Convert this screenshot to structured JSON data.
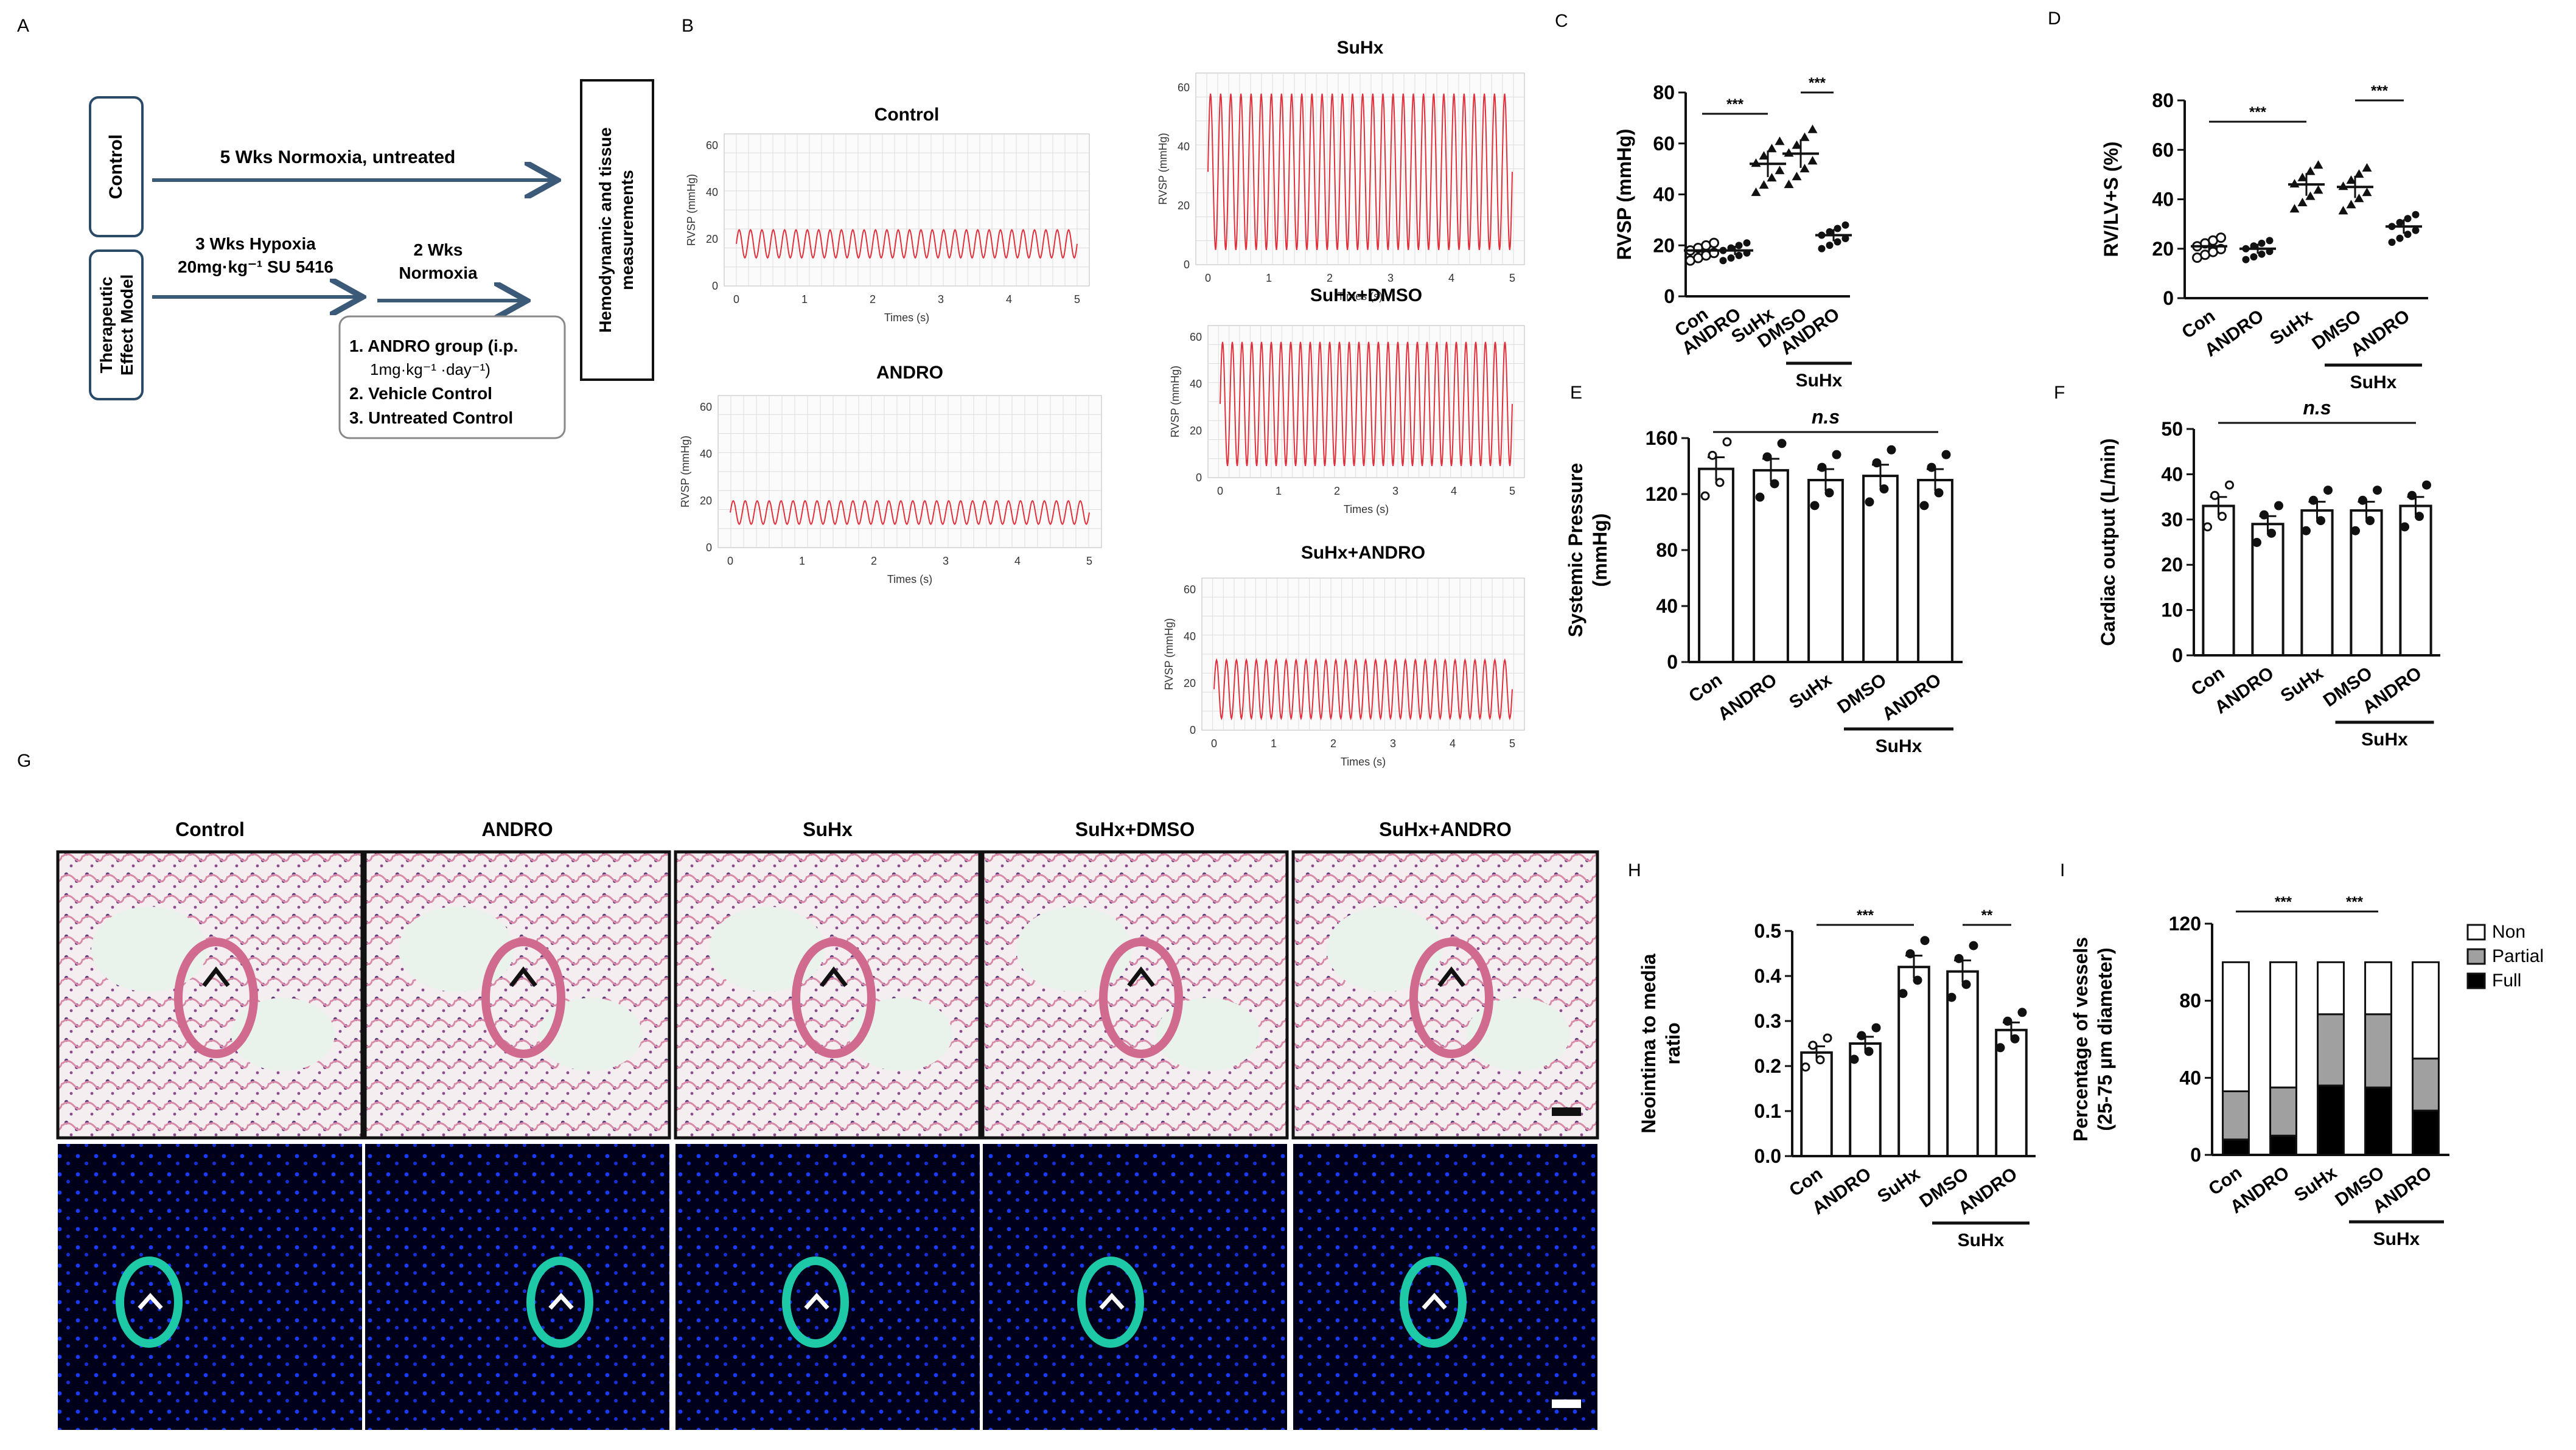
{
  "panel_letters": {
    "A": "A",
    "B": "B",
    "C": "C",
    "D": "D",
    "E": "E",
    "F": "F",
    "G": "G",
    "H": "H",
    "I": "I"
  },
  "panelA": {
    "control_label": "Control",
    "model_label_line1": "Therapeutic",
    "model_label_line2": "Effect Model",
    "arrow1_text": "5 Wks Normoxia, untreated",
    "arrow2_line1": "3 Wks Hypoxia",
    "arrow2_line2": "20mg·kg⁻¹ SU 5416",
    "arrow3_line1": "2 Wks",
    "arrow3_line2": "Normoxia",
    "groups": [
      "1. ANDRO group (i.p.",
      "1mg·kg⁻¹ ·day⁻¹)",
      "2. Vehicle Control",
      "3. Untreated Control"
    ],
    "measure_line1": "Hemodynamic and tissue",
    "measure_line2": "measurements"
  },
  "panelB": {
    "y_label": "RVSP (mmHg)",
    "x_label": "Times (s)",
    "traces": [
      {
        "title": "Control",
        "amplitude": [
          12,
          24
        ]
      },
      {
        "title": "ANDRO",
        "amplitude": [
          10,
          20
        ]
      },
      {
        "title": "SuHx",
        "amplitude": [
          5,
          58
        ]
      },
      {
        "title": "SuHx+DMSO",
        "amplitude": [
          5,
          58
        ]
      },
      {
        "title": "SuHx+ANDRO",
        "amplitude": [
          5,
          30
        ]
      }
    ]
  },
  "dot_panels": [
    {
      "id": "C",
      "ylabel": "RVSP (mmHg)",
      "yticks": [
        "0",
        "20",
        "40",
        "60",
        "80"
      ],
      "ymax": 80,
      "categories": [
        "Con",
        "ANDRO",
        "SuHx",
        "DMSO",
        "ANDRO"
      ],
      "means": [
        18,
        18,
        52,
        56,
        24
      ],
      "sig": [
        {
          "text": "***",
          "from": 0,
          "to": 2
        },
        {
          "text": "***",
          "from": 3,
          "to": 4
        }
      ],
      "group_label": "SuHx"
    },
    {
      "id": "D",
      "ylabel": "RV/LV+S (%)",
      "yticks": [
        "0",
        "20",
        "40",
        "60",
        "80"
      ],
      "ymax": 80,
      "categories": [
        "Con",
        "ANDRO",
        "SuHx",
        "DMSO",
        "ANDRO"
      ],
      "means": [
        21,
        20,
        46,
        45,
        29
      ],
      "sig": [
        {
          "text": "***",
          "from": 0,
          "to": 2
        },
        {
          "text": "***",
          "from": 3,
          "to": 4
        }
      ],
      "group_label": "SuHx"
    }
  ],
  "bar_panels": [
    {
      "id": "E",
      "ylabel_line1": "Systemic Pressure",
      "ylabel_line2": "(mmHg)",
      "yticks": [
        "0",
        "40",
        "80",
        "120",
        "160"
      ],
      "ymax": 160,
      "categories": [
        "Con",
        "ANDRO",
        "SuHx",
        "DMSO",
        "ANDRO"
      ],
      "values": [
        138,
        137,
        130,
        133,
        130
      ],
      "ns": "n.s",
      "group_label": "SuHx"
    },
    {
      "id": "F",
      "ylabel_line1": "Cardiac output (L/min)",
      "ylabel_line2": "",
      "yticks": [
        "0",
        "10",
        "20",
        "30",
        "40",
        "50"
      ],
      "ymax": 50,
      "categories": [
        "Con",
        "ANDRO",
        "SuHx",
        "DMSO",
        "ANDRO"
      ],
      "values": [
        33,
        29,
        32,
        32,
        33
      ],
      "ns": "n.s",
      "group_label": "SuHx"
    },
    {
      "id": "H",
      "ylabel_line1": "Neointima to media",
      "ylabel_line2": "ratio",
      "yticks": [
        "0.0",
        "0.1",
        "0.2",
        "0.3",
        "0.4",
        "0.5"
      ],
      "ymax": 0.5,
      "categories": [
        "Con",
        "ANDRO",
        "SuHx",
        "DMSO",
        "ANDRO"
      ],
      "values": [
        0.23,
        0.25,
        0.42,
        0.41,
        0.28
      ],
      "ns": "",
      "group_label": "SuHx",
      "sig": [
        {
          "text": "***",
          "from": 0,
          "to": 2
        },
        {
          "text": "**",
          "from": 3,
          "to": 4
        }
      ]
    }
  ],
  "panelG": {
    "titles": [
      "Control",
      "ANDRO",
      "SuHx",
      "SuHx+DMSO",
      "SuHx+ANDRO"
    ]
  },
  "chart_data": {
    "type": "bar",
    "stacked": true,
    "ylabel": "Percentage of vessels (25-75 µm diameter)",
    "ylim": [
      0,
      120
    ],
    "yticks": [
      "0",
      "40",
      "80",
      "120"
    ],
    "categories": [
      "Con",
      "ANDRO",
      "SuHx",
      "DMSO",
      "ANDRO"
    ],
    "group_label": "SuHx",
    "series": [
      {
        "name": "Full",
        "color": "#000000",
        "values": [
          8,
          10,
          36,
          35,
          23
        ]
      },
      {
        "name": "Partial",
        "color": "#a0a0a0",
        "values": [
          25,
          25,
          37,
          38,
          27
        ]
      },
      {
        "name": "Non",
        "color": "#ffffff",
        "values": [
          67,
          65,
          27,
          27,
          50
        ]
      }
    ],
    "sig": [
      {
        "text": "***",
        "from": 0,
        "to": 2
      },
      {
        "text": "***",
        "from": 2,
        "to": 3
      }
    ],
    "legend_position": "top-right"
  }
}
